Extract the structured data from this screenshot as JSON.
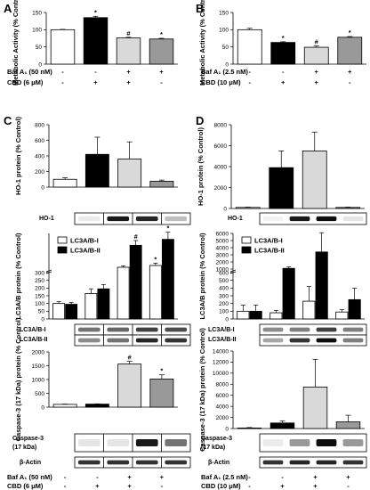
{
  "panels": {
    "A": "A",
    "B": "B",
    "C": "C",
    "D": "D"
  },
  "conditions_left": {
    "baf_label": "Baf A₁ (50 nM)",
    "cbd_label": "CBD (6 μM)",
    "baf_signs": [
      "-",
      "-",
      "+",
      "+"
    ],
    "cbd_signs": [
      "-",
      "+",
      "+",
      "-"
    ]
  },
  "conditions_right": {
    "baf_label": "Baf A₁ (2.5 nM)",
    "cbd_label": "CBD (10 μM)",
    "baf_signs": [
      "-",
      "-",
      "+",
      "+"
    ],
    "cbd_signs": [
      "-",
      "+",
      "+",
      "-"
    ]
  },
  "blots": {
    "ho1": "HO-1",
    "lc3_i": "LC3A/B-I",
    "lc3_ii": "LC3A/B-II",
    "casp_a": "Caspase-3",
    "casp_b": "(17 kDa)",
    "actin": "β-Actin"
  },
  "colors": {
    "ctrl": "#ffffff",
    "cbd": "#000000",
    "baf_cbd": "#d9d9d9",
    "baf": "#999999",
    "lc3_i": "#ffffff",
    "lc3_ii": "#000000"
  },
  "chart_data": [
    {
      "panel": "A",
      "type": "bar",
      "ylabel": "Metabolic Activity (% Control)",
      "ylim": [
        0,
        150
      ],
      "yticks": [
        "0",
        "50",
        "100",
        "150"
      ],
      "values": [
        100,
        135,
        76,
        73
      ],
      "errors": [
        1,
        4,
        2,
        2
      ],
      "markers": [
        "",
        "*",
        "#",
        "*"
      ]
    },
    {
      "panel": "B",
      "type": "bar",
      "ylabel": "Metabolic Activity (% Control)",
      "ylim": [
        0,
        150
      ],
      "yticks": [
        "0",
        "50",
        "100",
        "150"
      ],
      "values": [
        100,
        63,
        49,
        78
      ],
      "errors": [
        4,
        2,
        4,
        2
      ],
      "markers": [
        "",
        "*",
        "#",
        "*"
      ]
    },
    {
      "panel": "C-HO1",
      "type": "bar",
      "ylabel": "HO-1 protein (% Control)",
      "ylim": [
        0,
        800
      ],
      "yticks": [
        "0",
        "200",
        "400",
        "600",
        "800"
      ],
      "values": [
        100,
        420,
        360,
        75
      ],
      "errors": [
        20,
        220,
        220,
        15
      ],
      "markers": [
        "",
        "",
        "",
        ""
      ]
    },
    {
      "panel": "D-HO1",
      "type": "bar",
      "ylabel": "HO-1 protein (% Control)",
      "ylim": [
        0,
        8000
      ],
      "yticks": [
        "0",
        "2000",
        "4000",
        "6000",
        "8000"
      ],
      "values": [
        100,
        3900,
        5500,
        100
      ],
      "errors": [
        30,
        1600,
        1800,
        30
      ],
      "markers": [
        "",
        "",
        "",
        ""
      ]
    },
    {
      "panel": "C-LC3",
      "type": "grouped-bar",
      "ylabel": "LC3A/B protein (% Control)",
      "ylim": [
        0,
        900
      ],
      "yticks": [
        "0",
        "50",
        "100",
        "150",
        "200",
        "250",
        "300"
      ],
      "axis_break": true,
      "legend": [
        "LC3A/B-I",
        "LC3A/B-II"
      ],
      "series": [
        {
          "name": "LC3A/B-I",
          "values": [
            100,
            165,
            330,
            360
          ],
          "errors": [
            12,
            30,
            25,
            40
          ],
          "markers": [
            "",
            "",
            "",
            "*"
          ]
        },
        {
          "name": "LC3A/B-II",
          "values": [
            95,
            195,
            700,
            800
          ],
          "errors": [
            12,
            28,
            80,
            120
          ],
          "markers": [
            "",
            "",
            "#",
            "*"
          ]
        }
      ]
    },
    {
      "panel": "D-LC3",
      "type": "grouped-bar",
      "ylabel": "LC3A/B protein (% Control)",
      "ylim": [
        0,
        6000
      ],
      "yticks": [
        "0",
        "100",
        "200",
        "300",
        "400",
        "500",
        "600",
        "1000",
        "2000",
        "3000",
        "4000",
        "5000",
        "6000"
      ],
      "axis_break": true,
      "legend": [
        "LC3A/B-I",
        "LC3A/B-II"
      ],
      "series": [
        {
          "name": "LC3A/B-I",
          "values": [
            100,
            80,
            230,
            90
          ],
          "errors": [
            80,
            30,
            190,
            30
          ]
        },
        {
          "name": "LC3A/B-II",
          "values": [
            100,
            1100,
            3400,
            250
          ],
          "errors": [
            80,
            200,
            2700,
            150
          ]
        }
      ]
    },
    {
      "panel": "C-Casp3",
      "type": "bar",
      "ylabel": "Caspase-3 (17 kDa) protein (% Control)",
      "ylim": [
        0,
        2000
      ],
      "yticks": [
        "0",
        "500",
        "1000",
        "1500",
        "2000"
      ],
      "values": [
        100,
        110,
        1560,
        1020
      ],
      "errors": [
        10,
        10,
        100,
        150
      ],
      "markers": [
        "",
        "",
        "#",
        "*"
      ]
    },
    {
      "panel": "D-Casp3",
      "type": "bar",
      "ylabel": "Caspase-3 (17 kDa) protein (% Control)",
      "ylim": [
        0,
        14000
      ],
      "yticks": [
        "0",
        "2000",
        "4000",
        "6000",
        "8000",
        "10000",
        "12000",
        "14000"
      ],
      "values": [
        100,
        1000,
        7500,
        1200
      ],
      "errors": [
        80,
        400,
        5000,
        1200
      ],
      "markers": [
        "",
        "",
        "",
        ""
      ]
    }
  ]
}
